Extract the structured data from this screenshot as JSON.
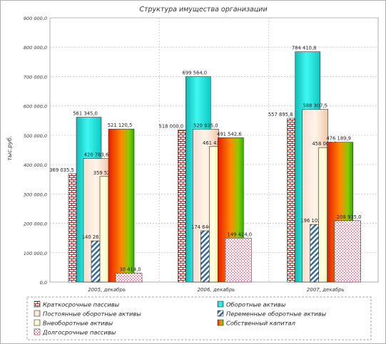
{
  "chart_data": {
    "type": "bar",
    "title": "Структура имущества организации",
    "ylabel": "тыс.руб.",
    "xlabel": "",
    "ylim": [
      0,
      900000
    ],
    "yticks": [
      "0,0",
      "100 000,0",
      "200 000,0",
      "300 000,0",
      "400 000,0",
      "500 000,0",
      "600 000,0",
      "700 000,0",
      "800 000,0",
      "900 000,0"
    ],
    "grid": true,
    "legend_position": "bottom",
    "categories": [
      "2005, декабрь",
      "2006, декабрь",
      "2007, декабрь"
    ],
    "series": [
      {
        "name": "Краткосрочные пассивы",
        "values": [
          369035.5,
          518000,
          557895.8
        ],
        "labels": [
          "369 035,5",
          "518 000,0",
          "557 895,8"
        ],
        "pattern": "brick",
        "color": "#cc3333"
      },
      {
        "name": "Оборотные активы",
        "values": [
          561345,
          699564,
          784410.8
        ],
        "labels": [
          "561 345,0",
          "699 564,0",
          "784 410,8"
        ],
        "pattern": "cyl",
        "color": "#19e6e0"
      },
      {
        "name": "Постоянные оборотные активы",
        "values": [
          420783.6,
          520935,
          588307.5
        ],
        "labels": [
          "420 783,6",
          "520 935,0",
          "588 307,5"
        ],
        "pattern": "peach",
        "color": "#f0c8a8"
      },
      {
        "name": "Переменные оборотные активы",
        "values": [
          140261.3,
          174646,
          196102
        ],
        "labels": [
          "140 261,3",
          "174 646,0",
          "196 102,0"
        ],
        "pattern": "diag",
        "color": "#336699"
      },
      {
        "name": "Внеоборотные активы",
        "values": [
          359523,
          461431,
          458000
        ],
        "labels": [
          "359 523,0",
          "461 431,0",
          "458 000,0"
        ],
        "pattern": "cream",
        "color": "#ffffb0"
      },
      {
        "name": "Собственный капитал",
        "values": [
          521120.5,
          491542.6,
          476189.9
        ],
        "labels": [
          "521 120,5",
          "491 542,6",
          "476 189,9"
        ],
        "pattern": "grad",
        "color": "#e03000"
      },
      {
        "name": "Долгосрочные пассивы",
        "values": [
          30414,
          149424,
          208935
        ],
        "labels": [
          "30 414,0",
          "149 424,0",
          "208 935,0"
        ],
        "pattern": "dots",
        "color": "#aa3333"
      }
    ]
  }
}
